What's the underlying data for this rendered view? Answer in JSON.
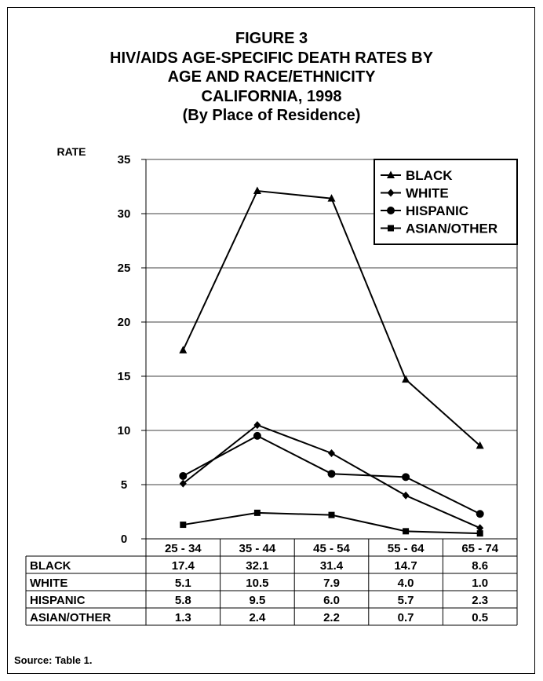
{
  "title_lines": [
    "FIGURE 3",
    "HIV/AIDS AGE-SPECIFIC DEATH RATES BY",
    "AGE AND RACE/ETHNICITY",
    "CALIFORNIA, 1998",
    "(By Place of Residence)"
  ],
  "source": "Source:  Table 1.",
  "chart_data": {
    "type": "line",
    "ylabel": "RATE",
    "ylim": [
      0,
      35
    ],
    "yticks": [
      0,
      5,
      10,
      15,
      20,
      25,
      30,
      35
    ],
    "categories": [
      "25 - 34",
      "35 - 44",
      "45 - 54",
      "55 - 64",
      "65 - 74"
    ],
    "grid": "horizontal",
    "legend_position": "top-right",
    "series": [
      {
        "name": "BLACK",
        "marker": "triangle",
        "values": [
          17.4,
          32.1,
          31.4,
          14.7,
          8.6
        ],
        "display": [
          "17.4",
          "32.1",
          "31.4",
          "14.7",
          "8.6"
        ]
      },
      {
        "name": "WHITE",
        "marker": "diamond",
        "values": [
          5.1,
          10.5,
          7.9,
          4.0,
          1.0
        ],
        "display": [
          "5.1",
          "10.5",
          "7.9",
          "4.0",
          "1.0"
        ]
      },
      {
        "name": "HISPANIC",
        "marker": "circle",
        "values": [
          5.8,
          9.5,
          6.0,
          5.7,
          2.3
        ],
        "display": [
          "5.8",
          "9.5",
          "6.0",
          "5.7",
          "2.3"
        ]
      },
      {
        "name": "ASIAN/OTHER",
        "marker": "square",
        "values": [
          1.3,
          2.4,
          2.2,
          0.7,
          0.5
        ],
        "display": [
          "1.3",
          "2.4",
          "2.2",
          "0.7",
          "0.5"
        ]
      }
    ],
    "data_table": true
  }
}
